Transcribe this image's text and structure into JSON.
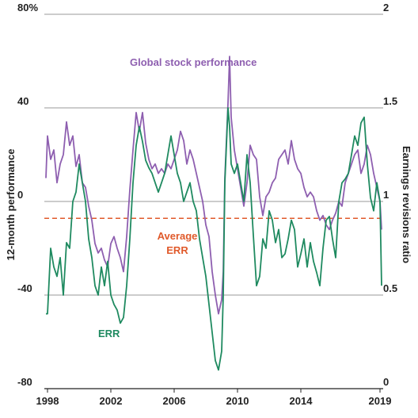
{
  "chart_data": {
    "type": "line",
    "xlabel": "",
    "ylabel_left": "12-month performance",
    "ylabel_right": "Earnings revisions ratio",
    "x_ticks": [
      "1998",
      "2002",
      "2006",
      "2010",
      "2014",
      "2019"
    ],
    "x_range": [
      1997.8,
      2019.2
    ],
    "y_left_ticks": [
      "80%",
      "40",
      "0",
      "-40",
      "-80"
    ],
    "y_left_range": [
      -80,
      80
    ],
    "y_right_ticks": [
      "2",
      "1.5",
      "1",
      "0.5",
      "0"
    ],
    "y_right_range": [
      0,
      2
    ],
    "grid": true,
    "average_err": {
      "label_line1": "Average",
      "label_line2": "ERR",
      "value": 0.91,
      "color": "#e05a2b"
    },
    "series": [
      {
        "name": "Global stock performance",
        "axis": "left",
        "color": "#8e5fb0",
        "x": [
          1997.9,
          1998.0,
          1998.2,
          1998.4,
          1998.6,
          1998.8,
          1999.0,
          1999.2,
          1999.4,
          1999.6,
          1999.8,
          2000.0,
          2000.2,
          2000.4,
          2000.6,
          2000.8,
          2001.0,
          2001.2,
          2001.4,
          2001.6,
          2001.8,
          2002.0,
          2002.2,
          2002.4,
          2002.6,
          2002.8,
          2003.0,
          2003.2,
          2003.4,
          2003.6,
          2003.8,
          2004.0,
          2004.2,
          2004.4,
          2004.6,
          2004.8,
          2005.0,
          2005.2,
          2005.4,
          2005.6,
          2005.8,
          2006.0,
          2006.2,
          2006.4,
          2006.6,
          2006.8,
          2007.0,
          2007.2,
          2007.4,
          2007.6,
          2007.8,
          2008.0,
          2008.2,
          2008.4,
          2008.6,
          2008.8,
          2009.0,
          2009.1,
          2009.2,
          2009.4,
          2009.5,
          2009.6,
          2009.8,
          2010.0,
          2010.2,
          2010.4,
          2010.6,
          2010.8,
          2011.0,
          2011.2,
          2011.4,
          2011.6,
          2011.8,
          2012.0,
          2012.2,
          2012.4,
          2012.6,
          2012.8,
          2013.0,
          2013.2,
          2013.4,
          2013.6,
          2013.8,
          2014.0,
          2014.2,
          2014.4,
          2014.6,
          2014.8,
          2015.0,
          2015.2,
          2015.4,
          2015.6,
          2015.8,
          2016.0,
          2016.2,
          2016.4,
          2016.6,
          2016.8,
          2017.0,
          2017.2,
          2017.4,
          2017.6,
          2017.8,
          2018.0,
          2018.2,
          2018.4,
          2018.6,
          2018.8,
          2019.0,
          2019.1
        ],
        "values": [
          10,
          28,
          18,
          22,
          8,
          16,
          20,
          34,
          24,
          28,
          15,
          20,
          8,
          6,
          -2,
          -8,
          -18,
          -22,
          -20,
          -25,
          -28,
          -18,
          -15,
          -20,
          -24,
          -30,
          -15,
          5,
          22,
          38,
          30,
          38,
          25,
          18,
          14,
          16,
          12,
          14,
          12,
          16,
          14,
          18,
          22,
          30,
          26,
          16,
          22,
          18,
          12,
          6,
          0,
          -10,
          -15,
          -30,
          -40,
          -48,
          -42,
          -30,
          10,
          42,
          62,
          36,
          22,
          14,
          6,
          -2,
          8,
          24,
          20,
          18,
          2,
          -6,
          2,
          4,
          8,
          10,
          18,
          20,
          22,
          16,
          26,
          18,
          14,
          12,
          6,
          2,
          4,
          2,
          -4,
          -8,
          -6,
          -10,
          -12,
          -8,
          -5,
          0,
          -2,
          8,
          12,
          16,
          20,
          22,
          12,
          16,
          24,
          20,
          12,
          6,
          0,
          -12
        ]
      },
      {
        "name": "ERR",
        "axis": "right",
        "color": "#1f8a60",
        "x": [
          1997.9,
          1998.0,
          1998.2,
          1998.4,
          1998.6,
          1998.8,
          1999.0,
          1999.2,
          1999.4,
          1999.6,
          1999.8,
          2000.0,
          2000.2,
          2000.4,
          2000.6,
          2000.8,
          2001.0,
          2001.2,
          2001.4,
          2001.6,
          2001.8,
          2002.0,
          2002.2,
          2002.4,
          2002.6,
          2002.8,
          2003.0,
          2003.2,
          2003.4,
          2003.6,
          2003.8,
          2004.0,
          2004.2,
          2004.4,
          2004.6,
          2004.8,
          2005.0,
          2005.2,
          2005.4,
          2005.6,
          2005.8,
          2006.0,
          2006.2,
          2006.4,
          2006.6,
          2006.8,
          2007.0,
          2007.2,
          2007.4,
          2007.6,
          2007.8,
          2008.0,
          2008.2,
          2008.4,
          2008.6,
          2008.8,
          2009.0,
          2009.1,
          2009.2,
          2009.4,
          2009.5,
          2009.6,
          2009.8,
          2010.0,
          2010.2,
          2010.4,
          2010.6,
          2010.8,
          2011.0,
          2011.2,
          2011.4,
          2011.6,
          2011.8,
          2012.0,
          2012.2,
          2012.4,
          2012.6,
          2012.8,
          2013.0,
          2013.2,
          2013.4,
          2013.6,
          2013.8,
          2014.0,
          2014.2,
          2014.4,
          2014.6,
          2014.8,
          2015.0,
          2015.2,
          2015.4,
          2015.6,
          2015.8,
          2016.0,
          2016.2,
          2016.4,
          2016.6,
          2016.8,
          2017.0,
          2017.2,
          2017.4,
          2017.6,
          2017.8,
          2018.0,
          2018.2,
          2018.4,
          2018.6,
          2018.8,
          2019.0,
          2019.1
        ],
        "values": [
          0.4,
          0.4,
          0.75,
          0.65,
          0.6,
          0.7,
          0.5,
          0.78,
          0.75,
          1.0,
          1.05,
          1.2,
          1.1,
          1.0,
          0.8,
          0.7,
          0.55,
          0.5,
          0.65,
          0.55,
          0.68,
          0.5,
          0.45,
          0.42,
          0.35,
          0.38,
          0.55,
          0.8,
          1.1,
          1.3,
          1.4,
          1.32,
          1.22,
          1.18,
          1.15,
          1.1,
          1.05,
          1.1,
          1.15,
          1.25,
          1.35,
          1.25,
          1.15,
          1.1,
          1.0,
          1.05,
          1.1,
          1.0,
          0.95,
          0.8,
          0.7,
          0.6,
          0.45,
          0.3,
          0.15,
          0.1,
          0.2,
          0.5,
          1.1,
          1.5,
          1.4,
          1.2,
          1.15,
          1.2,
          1.1,
          1.0,
          1.25,
          1.1,
          0.82,
          0.55,
          0.6,
          0.8,
          0.75,
          0.95,
          0.9,
          0.78,
          0.85,
          0.7,
          0.72,
          0.8,
          0.9,
          0.85,
          0.65,
          0.72,
          0.8,
          0.65,
          0.78,
          0.68,
          0.62,
          0.55,
          0.75,
          0.9,
          0.92,
          0.8,
          0.7,
          1.0,
          1.1,
          1.12,
          1.15,
          1.25,
          1.35,
          1.3,
          1.42,
          1.45,
          1.2,
          1.02,
          0.95,
          1.1,
          1.0,
          0.55
        ]
      }
    ],
    "annotations": [
      {
        "text": "Global stock performance",
        "color": "#8e5fb0",
        "x": 2003.2,
        "y_left": 58
      },
      {
        "text": "ERR",
        "color": "#1f8a60",
        "x": 2001.2,
        "y_left": -58
      }
    ]
  }
}
